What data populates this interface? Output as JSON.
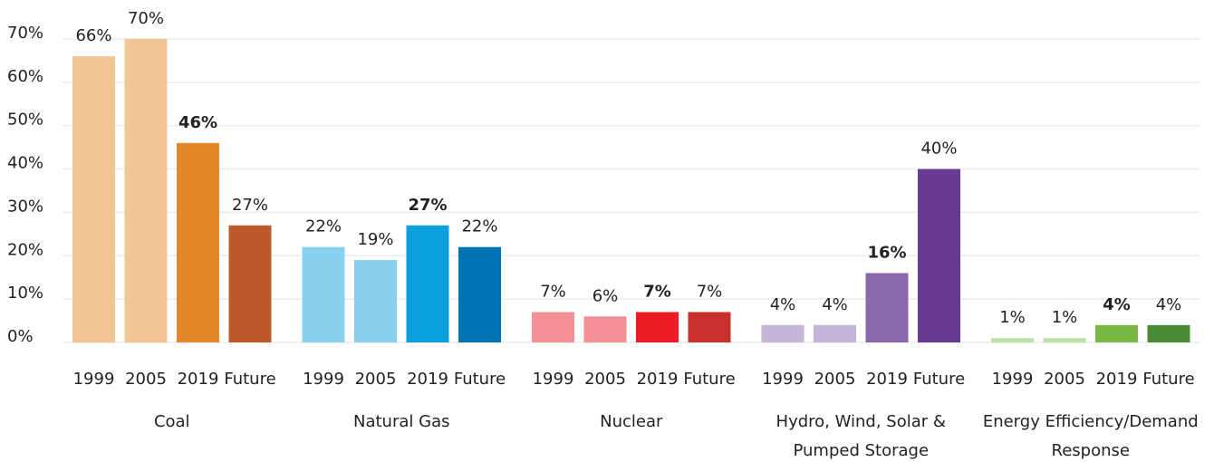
{
  "chart_data": {
    "type": "bar",
    "categories": [
      "Coal",
      "Natural Gas",
      "Nuclear",
      "Hydro, Wind, Solar & Pumped Storage",
      "Energy Efficiency/Demand Response"
    ],
    "series": [
      {
        "name": "1999",
        "colors": [
          "#f2c594",
          "#87d0ee",
          "#f49196",
          "#c5b5d9",
          "#bde0a5"
        ],
        "label_colors": [
          "#e5862a",
          "#1aa3dd",
          "#ec1c24",
          "#8a67ad",
          "#79b843"
        ],
        "values": [
          66,
          22,
          7,
          4,
          1
        ],
        "value_labels": [
          "66%",
          "22%",
          "7%",
          "4%",
          "1%"
        ]
      },
      {
        "name": "2005",
        "colors": [
          "#f2c594",
          "#87d0ee",
          "#f49196",
          "#c5b5d9",
          "#bde0a5"
        ],
        "label_colors": [
          "#e5862a",
          "#1aa3dd",
          "#ec1c24",
          "#8a67ad",
          "#79b843"
        ],
        "values": [
          70,
          19,
          6,
          4,
          1
        ],
        "value_labels": [
          "70%",
          "19%",
          "6%",
          "4%",
          "1%"
        ]
      },
      {
        "name": "2019",
        "colors": [
          "#e5862a",
          "#0aa0dd",
          "#ec1c24",
          "#8a67ad",
          "#79b843"
        ],
        "label_colors": [
          "#e5862a",
          "#0aa0dd",
          "#ec1c24",
          "#8a67ad",
          "#79b843"
        ],
        "label_bold": true,
        "values": [
          46,
          27,
          7,
          16,
          4
        ],
        "value_labels": [
          "46%",
          "27%",
          "7%",
          "16%",
          "4%"
        ]
      },
      {
        "name": "Future",
        "colors": [
          "#bc5b29",
          "#0074b3",
          "#c8302e",
          "#673b8f",
          "#4a8a35"
        ],
        "label_colors": [
          "#bc5b29",
          "#0074b3",
          "#c8302e",
          "#673b8f",
          "#4a8a35"
        ],
        "values": [
          27,
          22,
          7,
          40,
          4
        ],
        "value_labels": [
          "27%",
          "22%",
          "7%",
          "40%",
          "4%"
        ]
      }
    ],
    "ylim": [
      0,
      70
    ],
    "yticks": [
      {
        "value": 0,
        "label": "0%"
      },
      {
        "value": 10,
        "label": "10%"
      },
      {
        "value": 20,
        "label": "20%"
      },
      {
        "value": 30,
        "label": "30%"
      },
      {
        "value": 40,
        "label": "40%"
      },
      {
        "value": 50,
        "label": "50%"
      },
      {
        "value": 60,
        "label": "60%"
      },
      {
        "value": 70,
        "label": "70%"
      }
    ],
    "grid": true
  }
}
